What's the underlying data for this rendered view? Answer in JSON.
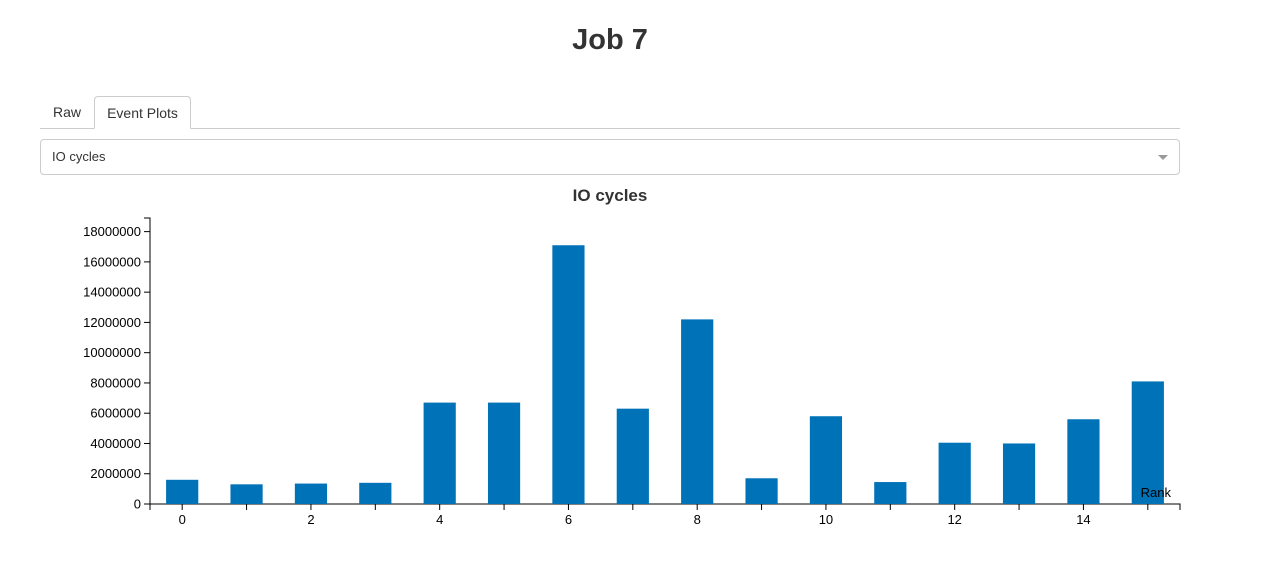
{
  "page": {
    "title": "Job 7"
  },
  "tabs": [
    {
      "label": "Raw",
      "active": false
    },
    {
      "label": "Event Plots",
      "active": true
    }
  ],
  "select": {
    "value": "IO cycles"
  },
  "chart_data": {
    "type": "bar",
    "title": "IO cycles",
    "xlabel": "Rank",
    "ylabel": "",
    "categories": [
      0,
      1,
      2,
      3,
      4,
      5,
      6,
      7,
      8,
      9,
      10,
      11,
      12,
      13,
      14,
      15
    ],
    "x_tick_labels": [
      "0",
      "2",
      "4",
      "6",
      "8",
      "10",
      "12",
      "14"
    ],
    "values": [
      1600000,
      1300000,
      1350000,
      1400000,
      6700000,
      6700000,
      17100000,
      6300000,
      12200000,
      1700000,
      5800000,
      1450000,
      4050000,
      4000000,
      5600000,
      8100000
    ],
    "y_ticks": [
      0,
      2000000,
      4000000,
      6000000,
      8000000,
      10000000,
      12000000,
      14000000,
      16000000,
      18000000
    ],
    "ylim": [
      0,
      18900000
    ],
    "grid": false,
    "legend": "none",
    "bar_color": "#0072b8"
  }
}
